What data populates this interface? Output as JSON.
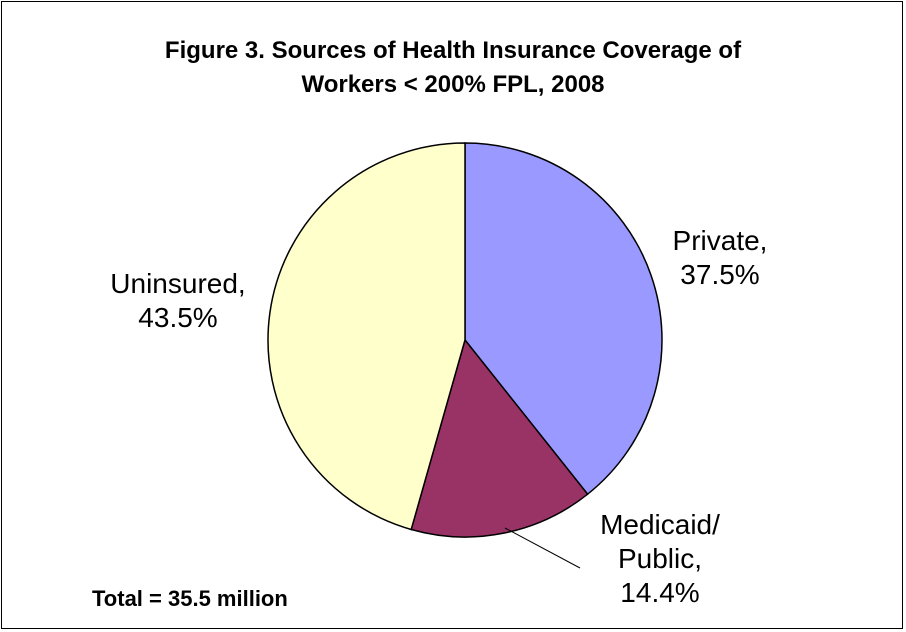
{
  "chart_data": {
    "type": "pie",
    "title": {
      "line1": "Figure 3. Sources of Health Insurance Coverage of",
      "line2": "Workers < 200% FPL, 2008"
    },
    "slices": [
      {
        "label": "Private,",
        "value": 37.5,
        "value_label": "37.5%",
        "color": "#9999FF"
      },
      {
        "label": "Medicaid/",
        "label2": "Public,",
        "value": 14.4,
        "value_label": "14.4%",
        "color": "#993366"
      },
      {
        "label": "Uninsured,",
        "value": 43.5,
        "value_label": "43.5%",
        "color": "#FFFFCC"
      }
    ],
    "start_angle": "12 o'clock",
    "direction": "clockwise",
    "edge_color": "#000000",
    "footnote": "Total = 35.5 million"
  }
}
